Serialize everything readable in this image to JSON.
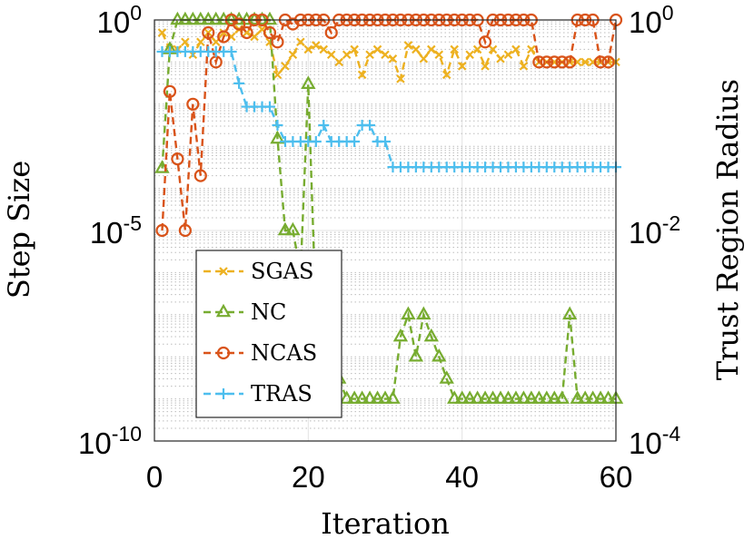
{
  "chart_data": {
    "type": "line",
    "title": "",
    "xlabel": "Iteration",
    "ylabel_left": "Step Size",
    "ylabel_right": "Trust Region Radius",
    "xlim": [
      0,
      60
    ],
    "ylim_left": [
      1e-10,
      1
    ],
    "ylim_right": [
      0.0001,
      1
    ],
    "yscale": "log",
    "grid": true,
    "legend_position": "bottom-left",
    "x_ticks": [
      "0",
      "20",
      "40",
      "60"
    ],
    "y_ticks_left": [
      {
        "base": "10",
        "exp": "0"
      },
      {
        "base": "10",
        "exp": "-5"
      },
      {
        "base": "10",
        "exp": "-10"
      }
    ],
    "y_ticks_right": [
      {
        "base": "10",
        "exp": "0"
      },
      {
        "base": "10",
        "exp": "-2"
      },
      {
        "base": "10",
        "exp": "-4"
      }
    ],
    "series": [
      {
        "name": "SGAS",
        "axis": "left",
        "color": "#EDB120",
        "marker": "x",
        "x": [
          1,
          2,
          3,
          4,
          5,
          6,
          7,
          8,
          9,
          10,
          11,
          12,
          13,
          14,
          15,
          16,
          17,
          18,
          19,
          20,
          21,
          22,
          23,
          24,
          25,
          26,
          27,
          28,
          29,
          30,
          31,
          32,
          33,
          34,
          35,
          36,
          37,
          38,
          39,
          40,
          41,
          42,
          43,
          44,
          45,
          46,
          47,
          48,
          49,
          50,
          51,
          52,
          53,
          54,
          55,
          56,
          57,
          58,
          59,
          60
        ],
        "y": [
          0.5,
          0.2,
          0.2,
          0.3,
          0.15,
          0.3,
          0.5,
          0.3,
          0.5,
          0.4,
          0.6,
          0.5,
          0.4,
          0.6,
          0.3,
          0.05,
          0.08,
          0.15,
          0.3,
          0.2,
          0.25,
          0.2,
          0.15,
          0.1,
          0.15,
          0.2,
          0.05,
          0.15,
          0.2,
          0.15,
          0.12,
          0.04,
          0.25,
          0.2,
          0.12,
          0.2,
          0.15,
          0.05,
          0.2,
          0.08,
          0.15,
          0.2,
          0.08,
          0.2,
          0.12,
          0.15,
          0.2,
          0.08,
          0.2,
          0.1,
          0.1,
          0.1,
          0.1,
          0.1,
          0.1,
          0.1,
          0.1,
          0.1,
          0.1,
          0.1
        ]
      },
      {
        "name": "NC",
        "axis": "left",
        "color": "#77AC30",
        "marker": "triangle",
        "x": [
          1,
          2,
          3,
          4,
          5,
          6,
          7,
          8,
          9,
          10,
          11,
          12,
          13,
          14,
          15,
          16,
          17,
          18,
          19,
          20,
          21,
          22,
          23,
          24,
          25,
          26,
          27,
          28,
          29,
          30,
          31,
          32,
          33,
          34,
          35,
          36,
          37,
          38,
          39,
          40,
          41,
          42,
          43,
          44,
          45,
          46,
          47,
          48,
          49,
          50,
          51,
          52,
          53,
          54,
          55,
          56,
          57,
          58,
          59,
          60
        ],
        "y": [
          0.0003,
          0.2,
          1,
          1,
          1,
          1,
          1,
          1,
          1,
          1,
          1,
          1,
          1,
          1,
          1,
          0.0015,
          1e-05,
          1e-05,
          1e-06,
          0.03,
          1e-07,
          1e-07,
          1e-07,
          3e-09,
          1e-09,
          1e-09,
          1e-09,
          1e-09,
          1e-09,
          1e-09,
          1e-09,
          3e-08,
          1e-07,
          1e-08,
          1e-07,
          3e-08,
          1e-08,
          3e-09,
          1e-09,
          1e-09,
          1e-09,
          1e-09,
          1e-09,
          1e-09,
          1e-09,
          1e-09,
          1e-09,
          1e-09,
          1e-09,
          1e-09,
          1e-09,
          1e-09,
          1e-09,
          1e-07,
          1e-09,
          1e-09,
          1e-09,
          1e-09,
          1e-09,
          1e-09
        ]
      },
      {
        "name": "NCAS",
        "axis": "left",
        "color": "#D95319",
        "marker": "circle",
        "x": [
          1,
          2,
          3,
          4,
          5,
          6,
          7,
          8,
          9,
          10,
          11,
          12,
          13,
          14,
          15,
          16,
          17,
          18,
          19,
          20,
          21,
          22,
          23,
          24,
          25,
          26,
          27,
          28,
          29,
          30,
          31,
          32,
          33,
          34,
          35,
          36,
          37,
          38,
          39,
          40,
          41,
          42,
          43,
          44,
          45,
          46,
          47,
          48,
          49,
          50,
          51,
          52,
          53,
          54,
          55,
          56,
          57,
          58,
          59,
          60
        ],
        "y": [
          1e-05,
          0.02,
          0.0005,
          1e-05,
          0.01,
          0.0002,
          0.5,
          0.1,
          0.4,
          1,
          0.8,
          0.5,
          1,
          1,
          0.5,
          0.3,
          1,
          0.8,
          1,
          1,
          1,
          1,
          0.5,
          1,
          1,
          1,
          1,
          1,
          1,
          1,
          1,
          1,
          1,
          1,
          1,
          1,
          1,
          1,
          1,
          1,
          1,
          1,
          0.3,
          1,
          1,
          1,
          1,
          1,
          1,
          0.1,
          0.1,
          0.1,
          0.1,
          0.1,
          1,
          1,
          1,
          0.1,
          0.1,
          1
        ]
      },
      {
        "name": "TRAS",
        "axis": "right",
        "color": "#4DBEEE",
        "marker": "plus",
        "x": [
          1,
          2,
          3,
          4,
          5,
          6,
          7,
          8,
          9,
          10,
          11,
          12,
          13,
          14,
          15,
          16,
          17,
          18,
          19,
          20,
          21,
          22,
          23,
          24,
          25,
          26,
          27,
          28,
          29,
          30,
          31,
          32,
          33,
          34,
          35,
          36,
          37,
          38,
          39,
          40,
          41,
          42,
          43,
          44,
          45,
          46,
          47,
          48,
          49,
          50,
          51,
          52,
          53,
          54,
          55,
          56,
          57,
          58,
          59,
          60
        ],
        "y": [
          0.5,
          0.5,
          0.5,
          0.5,
          0.5,
          0.5,
          0.5,
          0.5,
          0.5,
          0.5,
          0.25,
          0.15,
          0.15,
          0.15,
          0.15,
          0.1,
          0.07,
          0.07,
          0.07,
          0.07,
          0.07,
          0.1,
          0.07,
          0.07,
          0.07,
          0.07,
          0.1,
          0.1,
          0.07,
          0.07,
          0.04,
          0.04,
          0.04,
          0.04,
          0.04,
          0.04,
          0.04,
          0.04,
          0.04,
          0.04,
          0.04,
          0.04,
          0.04,
          0.04,
          0.04,
          0.04,
          0.04,
          0.04,
          0.04,
          0.04,
          0.04,
          0.04,
          0.04,
          0.04,
          0.04,
          0.04,
          0.04,
          0.04,
          0.04,
          0.04
        ]
      }
    ]
  }
}
